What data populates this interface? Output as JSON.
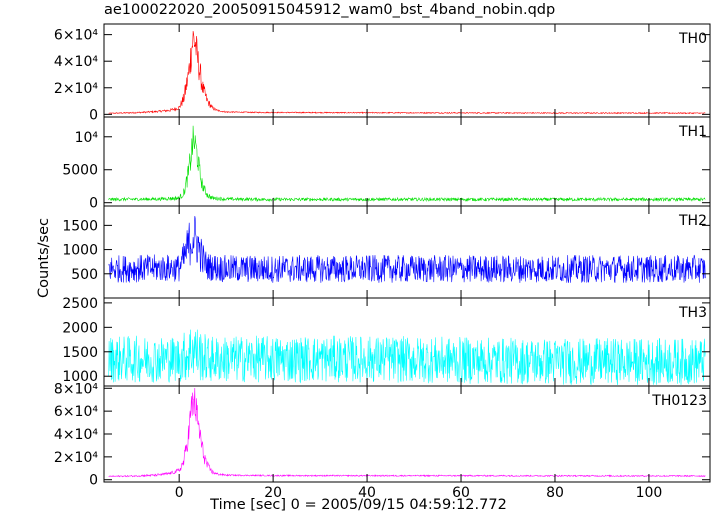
{
  "chart_data": {
    "type": "line",
    "title": "ae100022020_20050915045912_wam0_bst_4band_nobin.qdp",
    "xlabel": "Time [sec] 0 = 2005/09/15 04:59:12.772",
    "ylabel": "Counts/sec",
    "xlim": [
      -16,
      113
    ],
    "x_ticks": [
      0,
      20,
      40,
      60,
      80,
      100
    ],
    "x_tick_labels": [
      "0",
      "20",
      "40",
      "60",
      "80",
      "100"
    ],
    "grid": false,
    "panels": [
      {
        "name": "TH0",
        "color": "#ff0000",
        "ylim": [
          -2000,
          68000
        ],
        "y_ticks": [
          0,
          20000,
          40000,
          60000
        ],
        "y_tick_labels": [
          "0",
          "2×10⁴",
          "4×10⁴",
          "6×10⁴"
        ],
        "data": {
          "x": [
            -15,
            -10,
            -5,
            -2,
            0,
            1,
            2,
            2.5,
            3,
            3.5,
            4,
            4.5,
            5,
            6,
            7,
            8,
            10,
            15,
            20,
            40,
            60,
            80,
            100,
            112
          ],
          "y": [
            800,
            1200,
            2000,
            3000,
            5000,
            12000,
            30000,
            45000,
            58000,
            52000,
            40000,
            30000,
            20000,
            10000,
            5000,
            3000,
            1800,
            1500,
            1400,
            1200,
            1100,
            1000,
            1000,
            900
          ],
          "noise": [
            200,
            300,
            400,
            600,
            1000,
            3000,
            6000,
            9000,
            9000,
            9000,
            7000,
            6000,
            4000,
            2000,
            1000,
            500,
            300,
            250,
            250,
            250,
            250,
            250,
            250,
            250
          ]
        }
      },
      {
        "name": "TH1",
        "color": "#00e000",
        "ylim": [
          -500,
          13000
        ],
        "y_ticks": [
          0,
          5000,
          10000
        ],
        "y_tick_labels": [
          "0",
          "5000",
          "10⁴"
        ],
        "data": {
          "x": [
            -15,
            -5,
            0,
            1,
            2,
            2.5,
            3,
            3.5,
            4,
            4.5,
            5,
            6,
            7,
            10,
            20,
            60,
            112
          ],
          "y": [
            500,
            550,
            700,
            1500,
            4500,
            7000,
            9500,
            8500,
            6500,
            4000,
            2500,
            1200,
            700,
            550,
            500,
            500,
            500
          ],
          "noise": [
            150,
            150,
            200,
            400,
            1000,
            1500,
            1500,
            1500,
            1200,
            800,
            500,
            300,
            200,
            150,
            150,
            150,
            150
          ]
        }
      },
      {
        "name": "TH2",
        "color": "#0000ff",
        "ylim": [
          0,
          1900
        ],
        "y_ticks": [
          500,
          1000,
          1500
        ],
        "y_tick_labels": [
          "500",
          "1000",
          "1500"
        ],
        "data": {
          "x": [
            -15,
            0,
            1,
            2,
            3,
            4,
            5,
            6,
            10,
            40,
            80,
            112
          ],
          "y": [
            600,
            620,
            800,
            1100,
            1300,
            1100,
            800,
            650,
            600,
            600,
            600,
            600
          ],
          "noise": [
            180,
            180,
            220,
            300,
            350,
            300,
            220,
            180,
            180,
            180,
            180,
            180
          ]
        }
      },
      {
        "name": "TH3",
        "color": "#00ffff",
        "ylim": [
          800,
          2600
        ],
        "y_ticks": [
          1000,
          1500,
          2000,
          2500
        ],
        "y_tick_labels": [
          "1000",
          "1500",
          "2000",
          "2500"
        ],
        "data": {
          "x": [
            -15,
            0,
            2,
            3,
            4,
            6,
            40,
            80,
            112
          ],
          "y": [
            1350,
            1350,
            1450,
            1600,
            1450,
            1350,
            1350,
            1300,
            1300
          ],
          "noise": [
            300,
            300,
            350,
            400,
            350,
            300,
            300,
            300,
            300
          ]
        }
      },
      {
        "name": "TH0123",
        "color": "#ff00ff",
        "ylim": [
          -2000,
          82000
        ],
        "y_ticks": [
          0,
          20000,
          40000,
          60000,
          80000
        ],
        "y_tick_labels": [
          "0",
          "2×10⁴",
          "4×10⁴",
          "6×10⁴",
          "8×10⁴"
        ],
        "data": {
          "x": [
            -15,
            -10,
            -5,
            -2,
            0,
            1,
            2,
            2.5,
            3,
            3.5,
            4,
            4.5,
            5,
            6,
            7,
            8,
            10,
            15,
            20,
            40,
            60,
            80,
            100,
            112
          ],
          "y": [
            3000,
            3200,
            4000,
            5500,
            8000,
            16000,
            40000,
            58000,
            70000,
            64000,
            50000,
            38000,
            25000,
            12000,
            7000,
            5000,
            4000,
            3800,
            3600,
            3500,
            3500,
            3400,
            3300,
            3300
          ],
          "noise": [
            300,
            400,
            600,
            800,
            1200,
            3500,
            7000,
            10000,
            10000,
            10000,
            8000,
            7000,
            5000,
            2500,
            1200,
            700,
            400,
            350,
            350,
            350,
            350,
            350,
            350,
            350
          ]
        }
      }
    ]
  }
}
